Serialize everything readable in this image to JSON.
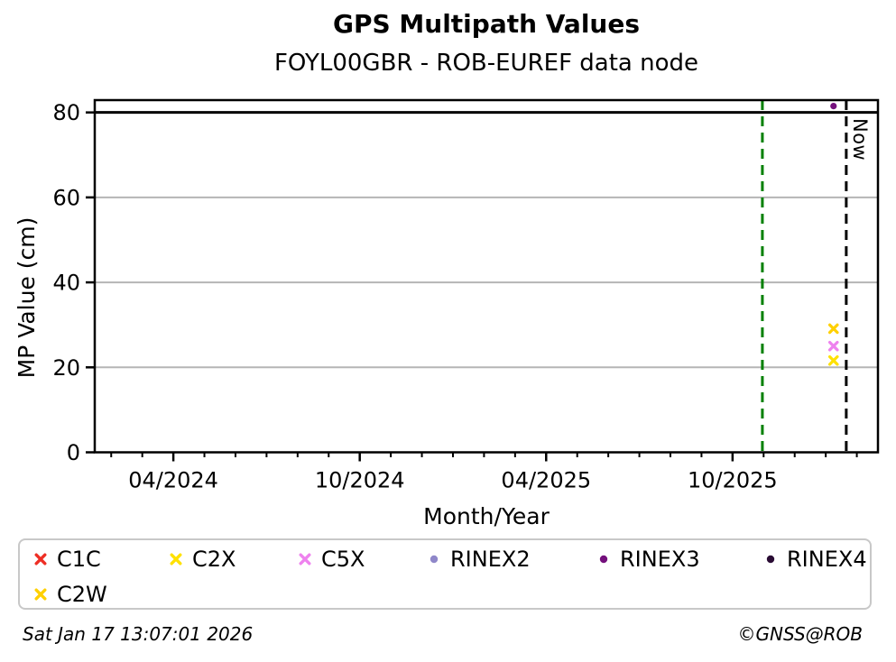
{
  "chart_data": {
    "type": "scatter",
    "title": "GPS Multipath Values",
    "subtitle": "FOYL00GBR - ROB-EUREF data node",
    "xlabel": "Month/Year",
    "ylabel": "MP Value (cm)",
    "x_axis": {
      "unit": "months since 2024-01-01",
      "range": [
        0.47,
        25.68
      ],
      "minor_tick_every_months": 1,
      "major_ticks": [
        {
          "t": 3,
          "label": "04/2024"
        },
        {
          "t": 9,
          "label": "10/2024"
        },
        {
          "t": 15,
          "label": "04/2025"
        },
        {
          "t": 21,
          "label": "10/2025"
        }
      ]
    },
    "y_axis": {
      "range": [
        0,
        82.9
      ],
      "ticks": [
        0,
        20,
        40,
        60,
        80
      ],
      "gridlines": [
        20,
        40,
        60
      ],
      "grid_color": "#b5b5b5"
    },
    "hlines": [
      {
        "name": "cap-line-80",
        "y": 80,
        "color": "#000000",
        "style": "solid"
      }
    ],
    "vlines": [
      {
        "name": "latest-data-line",
        "t": 21.96,
        "color": "#008000",
        "style": "dashed",
        "label": ""
      },
      {
        "name": "now-line",
        "t": 24.66,
        "color": "#000000",
        "style": "dashed",
        "label": "Now"
      }
    ],
    "series": [
      {
        "name": "C1C",
        "marker": "x",
        "color": "#ee2e24",
        "points": []
      },
      {
        "name": "C2X",
        "marker": "x",
        "color": "#ffe100",
        "points": [
          {
            "t": 24.25,
            "y": 21.6
          }
        ]
      },
      {
        "name": "C5X",
        "marker": "x",
        "color": "#ee82ee",
        "points": [
          {
            "t": 24.25,
            "y": 25.0
          }
        ]
      },
      {
        "name": "RINEX2",
        "marker": "circle",
        "color": "#8f87c9",
        "points": []
      },
      {
        "name": "RINEX3",
        "marker": "circle",
        "color": "#74107c",
        "points": [
          {
            "t": 24.25,
            "y": 81.5
          }
        ]
      },
      {
        "name": "RINEX4",
        "marker": "circle",
        "color": "#2a0c34",
        "points": []
      },
      {
        "name": "C2W",
        "marker": "x",
        "color": "#ffd000",
        "points": [
          {
            "t": 24.25,
            "y": 29.1
          }
        ]
      }
    ],
    "legend_position": "bottom"
  },
  "footer": {
    "timestamp": "Sat Jan 17 13:07:01 2026",
    "copyright": "©GNSS@ROB"
  }
}
